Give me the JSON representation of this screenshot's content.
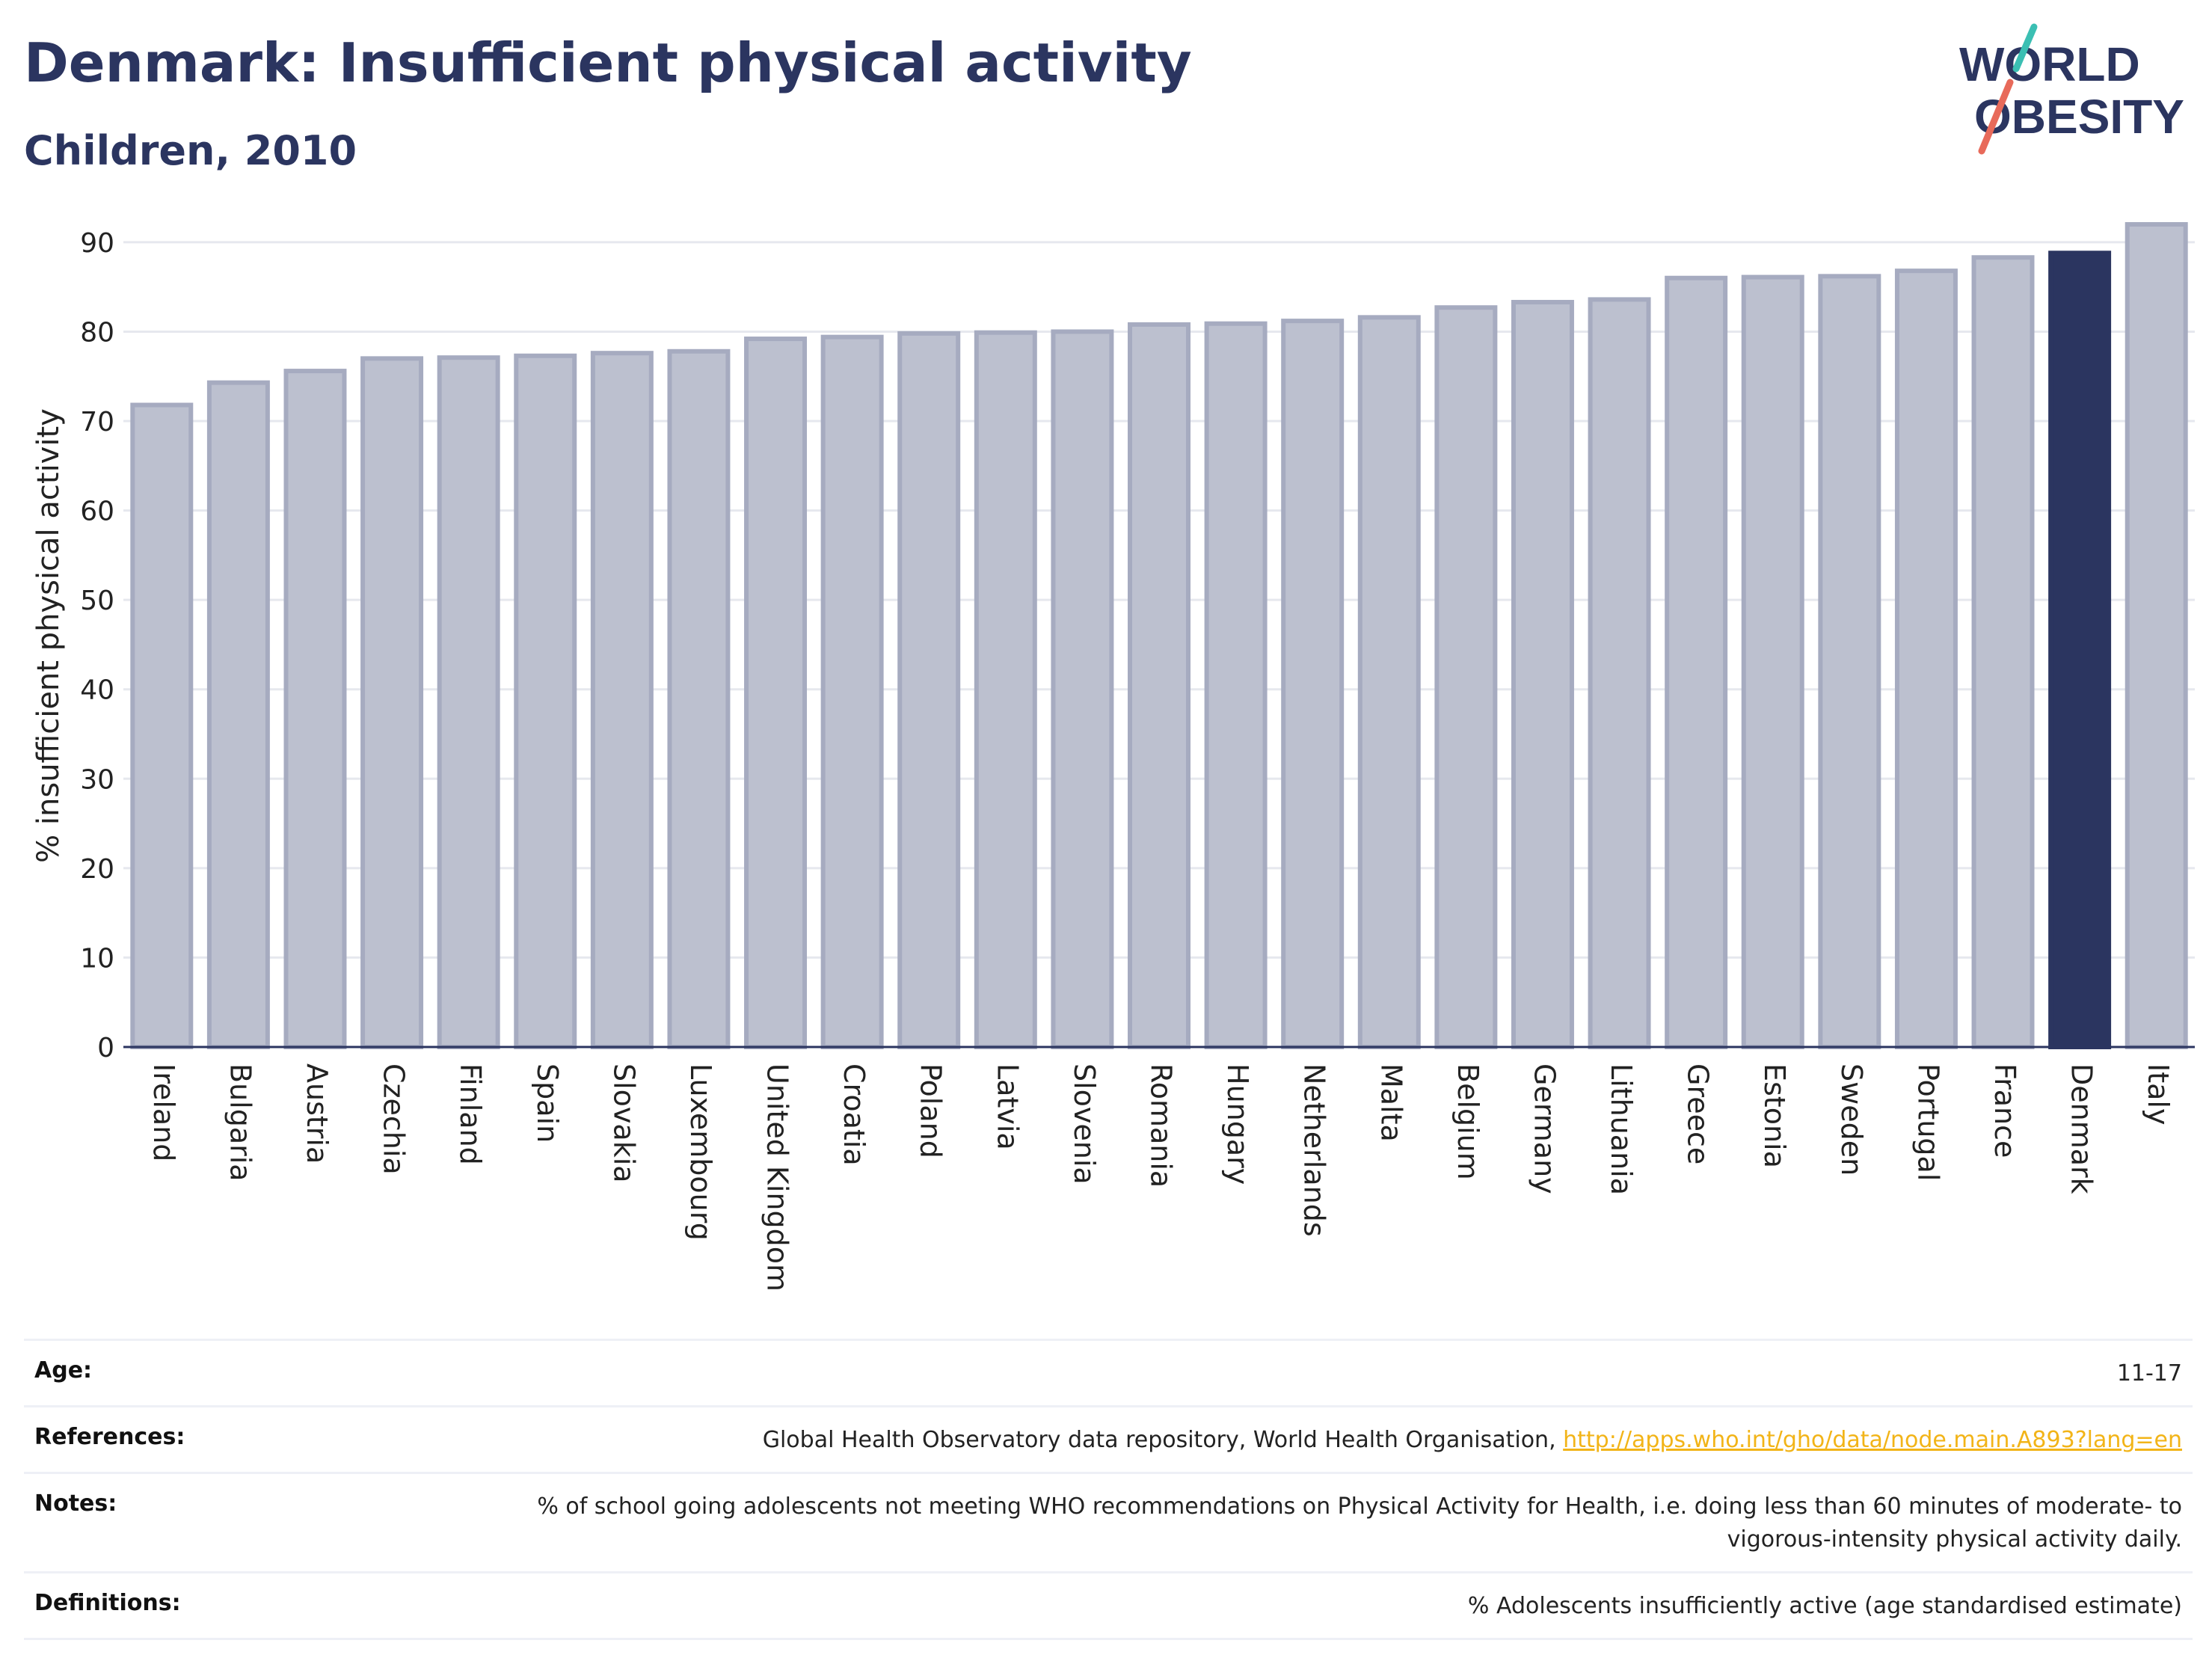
{
  "header": {
    "title": "Denmark: Insufficient physical activity",
    "subtitle": "Children, 2010",
    "logo_line1": "WORLD",
    "logo_line2": "OBESITY"
  },
  "colors": {
    "bar_default": "#bcc0cf",
    "bar_default_stroke": "#a6abc0",
    "bar_highlight": "#2b3560",
    "text": "#2b3560",
    "link": "#f2b418",
    "logo_teal": "#3bbfb3",
    "logo_red": "#e86a5a"
  },
  "chart_data": {
    "type": "bar",
    "title": "Denmark: Insufficient physical activity",
    "subtitle": "Children, 2010",
    "xlabel": "",
    "ylabel": "% insufficient physical activity",
    "ylim": [
      0,
      92
    ],
    "yticks": [
      0,
      10,
      20,
      30,
      40,
      50,
      60,
      70,
      80,
      90
    ],
    "grid": true,
    "highlight": "Denmark",
    "categories": [
      "Ireland",
      "Bulgaria",
      "Austria",
      "Czechia",
      "Finland",
      "Spain",
      "Slovakia",
      "Luxembourg",
      "United Kingdom",
      "Croatia",
      "Poland",
      "Latvia",
      "Slovenia",
      "Romania",
      "Hungary",
      "Netherlands",
      "Malta",
      "Belgium",
      "Germany",
      "Lithuania",
      "Greece",
      "Estonia",
      "Sweden",
      "Portugal",
      "France",
      "Denmark",
      "Italy"
    ],
    "values": [
      71.8,
      74.3,
      75.6,
      77.0,
      77.1,
      77.3,
      77.6,
      77.8,
      79.2,
      79.4,
      79.8,
      79.9,
      80.0,
      80.8,
      80.9,
      81.2,
      81.6,
      82.7,
      83.3,
      83.6,
      86.0,
      86.1,
      86.2,
      86.8,
      88.3,
      88.8,
      92.0
    ]
  },
  "info": {
    "age_label": "Age:",
    "age_value": "11-17",
    "references_label": "References:",
    "references_text": "Global Health Observatory data repository, World Health Organisation, ",
    "references_link": "http://apps.who.int/gho/data/node.main.A893?lang=en",
    "notes_label": "Notes:",
    "notes_value": "% of school going adolescents not meeting WHO recommendations on Physical Activity for Health, i.e. doing less than 60 minutes of moderate- to vigorous-intensity physical activity daily.",
    "definitions_label": "Definitions:",
    "definitions_value": "% Adolescents insufficiently active (age standardised estimate)"
  }
}
